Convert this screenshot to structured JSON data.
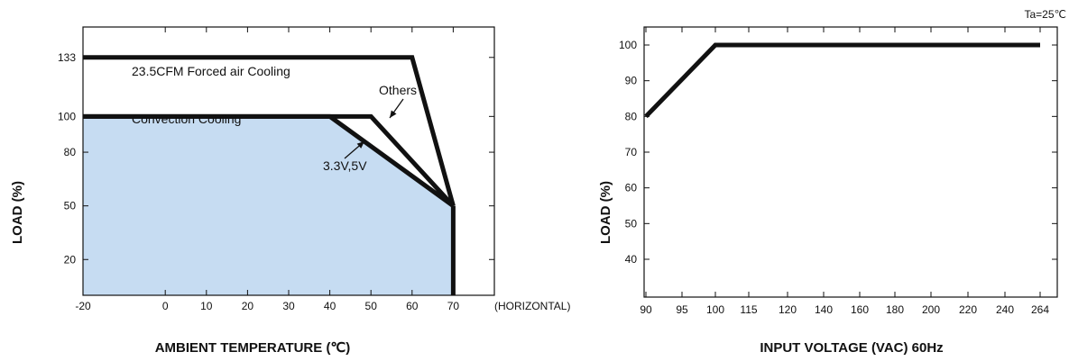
{
  "chart_data": [
    {
      "type": "line",
      "xlabel": "AMBIENT TEMPERATURE (℃)",
      "ylabel": "LOAD (%)",
      "x_ticks": [
        "-20",
        "0",
        "10",
        "20",
        "30",
        "40",
        "50",
        "60",
        "70"
      ],
      "x_tick_values": [
        -20,
        0,
        10,
        20,
        30,
        40,
        50,
        60,
        70
      ],
      "x_note": "(HORIZONTAL)",
      "y_ticks": [
        "20",
        "50",
        "80",
        "100",
        "133"
      ],
      "y_tick_values": [
        20,
        50,
        80,
        100,
        133
      ],
      "series": [
        {
          "name": "23.5CFM Forced air Cooling",
          "x": [
            -20,
            60,
            70
          ],
          "y": [
            133,
            133,
            50
          ]
        },
        {
          "name": "Others",
          "x": [
            -20,
            50,
            70
          ],
          "y": [
            100,
            100,
            50
          ]
        },
        {
          "name": "3.3V,5V",
          "x": [
            -20,
            40,
            70
          ],
          "y": [
            100,
            100,
            50
          ]
        }
      ],
      "shaded_region": {
        "label": "Convection Cooling",
        "x": [
          -20,
          40,
          70,
          70,
          -20
        ],
        "y": [
          100,
          100,
          50,
          0,
          0
        ],
        "color": "#c6dcf2"
      },
      "vertical_line": {
        "x": 70,
        "y": [
          50,
          0
        ]
      },
      "annotations": [
        "23.5CFM Forced air Cooling",
        "Convection Cooling",
        "Others",
        "3.3V,5V"
      ],
      "line_color": "#111111"
    },
    {
      "type": "line",
      "xlabel": "INPUT VOLTAGE (VAC) 60Hz",
      "ylabel": "LOAD (%)",
      "note": "Ta=25℃",
      "x_ticks": [
        "90",
        "95",
        "100",
        "115",
        "120",
        "140",
        "160",
        "180",
        "200",
        "220",
        "240",
        "264"
      ],
      "y_ticks": [
        "40",
        "50",
        "60",
        "70",
        "80",
        "90",
        "100"
      ],
      "y_tick_values": [
        40,
        50,
        60,
        70,
        80,
        90,
        100
      ],
      "series": [
        {
          "x": [
            "90",
            "100",
            "264"
          ],
          "y": [
            80,
            100,
            100
          ]
        }
      ],
      "line_color": "#111111"
    }
  ]
}
